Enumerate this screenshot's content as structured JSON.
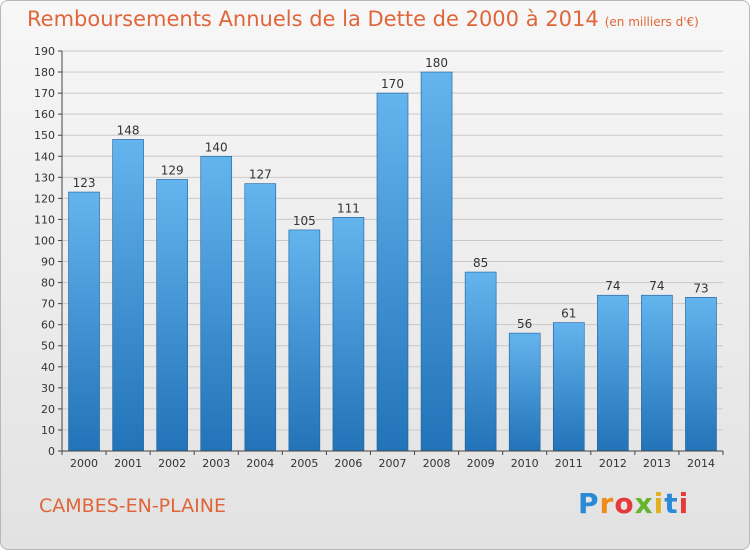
{
  "header": {
    "title": "Remboursements Annuels de la Dette de 2000 à 2014",
    "unit": "(en milliers d'€)"
  },
  "footer": {
    "commune": "CAMBES-EN-PLAINE",
    "brand": "Proxiti"
  },
  "colors": {
    "title": "#e0663a",
    "bar_top": "#64b4ee",
    "bar_bottom": "#2273b8"
  },
  "chart_data": {
    "type": "bar",
    "title": "Remboursements Annuels de la Dette de 2000 à 2014",
    "subtitle": "(en milliers d'€)",
    "xlabel": "",
    "ylabel": "",
    "categories": [
      "2000",
      "2001",
      "2002",
      "2003",
      "2004",
      "2005",
      "2006",
      "2007",
      "2008",
      "2009",
      "2010",
      "2011",
      "2012",
      "2013",
      "2014"
    ],
    "values": [
      123,
      148,
      129,
      140,
      127,
      105,
      111,
      170,
      180,
      85,
      56,
      61,
      74,
      74,
      73
    ],
    "ylim": [
      0,
      190
    ],
    "yticks": [
      0,
      10,
      20,
      30,
      40,
      50,
      60,
      70,
      80,
      90,
      100,
      110,
      120,
      130,
      140,
      150,
      160,
      170,
      180,
      190
    ],
    "grid": true,
    "legend": "none"
  }
}
